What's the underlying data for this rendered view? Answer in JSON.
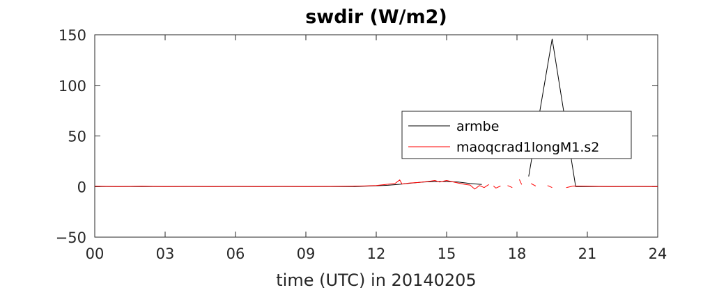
{
  "chart_data": {
    "type": "line",
    "title": "swdir  (W/m2)",
    "xlabel": "time (UTC) in 20140205",
    "ylabel": "",
    "xlim": [
      0,
      24
    ],
    "ylim": [
      -50,
      150
    ],
    "xticks": [
      0,
      3,
      6,
      9,
      12,
      15,
      18,
      21,
      24
    ],
    "xtick_labels": [
      "00",
      "03",
      "06",
      "09",
      "12",
      "15",
      "18",
      "21",
      "24"
    ],
    "yticks": [
      -50,
      0,
      50,
      100,
      150
    ],
    "ytick_labels": [
      "−50",
      "0",
      "50",
      "100",
      "150"
    ],
    "grid": false,
    "legend_position": "center-right",
    "series": [
      {
        "name": "armbe",
        "color": "#000000",
        "segments": [
          [
            [
              0.0,
              0.0
            ],
            [
              1.0,
              0.0
            ],
            [
              2.0,
              0.0
            ],
            [
              3.0,
              0.0
            ],
            [
              4.0,
              0.0
            ],
            [
              5.0,
              0.0
            ],
            [
              6.0,
              0.0
            ],
            [
              7.0,
              0.0
            ],
            [
              8.0,
              0.0
            ],
            [
              9.0,
              0.0
            ],
            [
              10.0,
              0.0
            ],
            [
              11.0,
              0.0
            ],
            [
              11.5,
              0.3
            ],
            [
              12.0,
              0.8
            ],
            [
              12.5,
              1.3
            ],
            [
              13.0,
              2.2
            ],
            [
              13.5,
              3.5
            ],
            [
              14.0,
              4.5
            ],
            [
              14.5,
              5.0
            ],
            [
              15.0,
              5.0
            ],
            [
              15.5,
              4.5
            ],
            [
              16.0,
              3.0
            ],
            [
              16.5,
              2.0
            ]
          ],
          [
            [
              18.5,
              10.0
            ],
            [
              19.5,
              146.0
            ],
            [
              20.5,
              0.0
            ],
            [
              21.0,
              0.0
            ],
            [
              22.0,
              0.0
            ],
            [
              23.0,
              0.0
            ],
            [
              24.0,
              0.0
            ]
          ]
        ]
      },
      {
        "name": "maoqcrad1longM1.s2",
        "color": "#ff0000",
        "segments": [
          [
            [
              0.0,
              0.3
            ],
            [
              1.0,
              0.0
            ],
            [
              2.0,
              0.3
            ],
            [
              3.0,
              0.0
            ],
            [
              4.0,
              0.2
            ],
            [
              5.0,
              0.0
            ],
            [
              6.0,
              0.2
            ],
            [
              7.0,
              0.0
            ],
            [
              8.0,
              0.2
            ],
            [
              9.0,
              0.0
            ],
            [
              10.0,
              0.2
            ],
            [
              11.0,
              0.4
            ],
            [
              11.5,
              0.6
            ],
            [
              12.0,
              1.0
            ],
            [
              12.4,
              2.0
            ],
            [
              12.8,
              3.0
            ],
            [
              13.0,
              6.5
            ],
            [
              13.1,
              2.5
            ],
            [
              13.4,
              3.5
            ],
            [
              13.8,
              4.0
            ],
            [
              14.2,
              5.0
            ],
            [
              14.5,
              6.0
            ],
            [
              14.7,
              4.5
            ],
            [
              15.0,
              6.0
            ],
            [
              15.2,
              5.0
            ],
            [
              15.5,
              3.5
            ],
            [
              15.8,
              2.0
            ],
            [
              16.0,
              1.5
            ],
            [
              16.2,
              -2.5
            ],
            [
              16.4,
              1.0
            ],
            [
              16.6,
              -1.0
            ],
            [
              16.8,
              2.0
            ]
          ],
          [
            [
              17.0,
              0.5
            ],
            [
              17.1,
              -1.5
            ],
            [
              17.3,
              0.5
            ]
          ],
          [
            [
              17.6,
              1.0
            ],
            [
              17.8,
              -1.0
            ]
          ],
          [
            [
              18.1,
              7.0
            ],
            [
              18.2,
              2.0
            ]
          ],
          [
            [
              18.6,
              3.0
            ],
            [
              18.8,
              0.5
            ]
          ],
          [
            [
              19.3,
              1.0
            ],
            [
              19.5,
              -1.0
            ]
          ],
          [
            [
              20.1,
              -1.0
            ],
            [
              20.4,
              0.5
            ],
            [
              21.0,
              0.3
            ],
            [
              22.0,
              0.0
            ],
            [
              23.0,
              0.2
            ],
            [
              24.0,
              0.0
            ]
          ]
        ]
      }
    ]
  }
}
